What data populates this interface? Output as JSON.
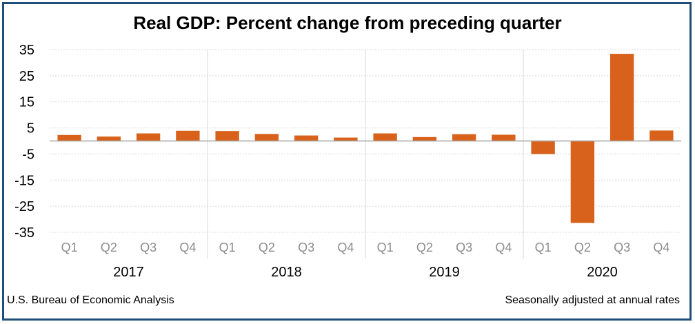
{
  "title": "Real GDP:  Percent change from preceding quarter",
  "footer": {
    "source": "U.S. Bureau of Economic Analysis",
    "note": "Seasonally adjusted at annual rates"
  },
  "colors": {
    "bar": "#d8621c",
    "border": "#1f4e79",
    "grid": "#d9d9d9",
    "zero_line": "#a6a6a6",
    "quarter_label": "#8c8c8c",
    "year_label": "#000000"
  },
  "chart_data": {
    "type": "bar",
    "title": "Real GDP:  Percent change from preceding quarter",
    "xlabel": "",
    "ylabel": "",
    "ylim": [
      -35,
      35
    ],
    "yticks": [
      35,
      25,
      15,
      5,
      -5,
      -15,
      -25,
      -35
    ],
    "grid": true,
    "categories": [
      "Q1",
      "Q2",
      "Q3",
      "Q4",
      "Q1",
      "Q2",
      "Q3",
      "Q4",
      "Q1",
      "Q2",
      "Q3",
      "Q4",
      "Q1",
      "Q2",
      "Q3",
      "Q4"
    ],
    "groups": [
      "2017",
      "2018",
      "2019",
      "2020"
    ],
    "values": [
      2.3,
      1.7,
      2.9,
      3.9,
      3.8,
      2.7,
      2.1,
      1.3,
      2.9,
      1.5,
      2.6,
      2.4,
      -5.0,
      -31.4,
      33.4,
      4.0
    ]
  }
}
